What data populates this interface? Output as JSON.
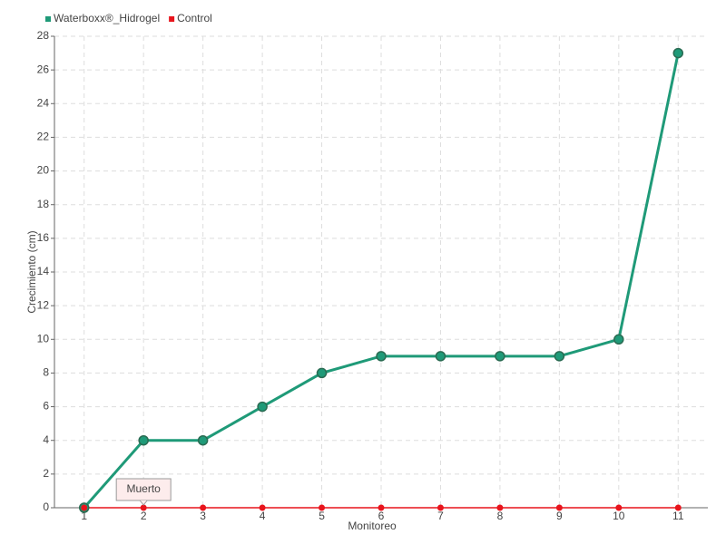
{
  "chart_data": {
    "type": "line",
    "x_label": "Monitoreo",
    "y_label": "Crecimiento (cm)",
    "categories": [
      "1",
      "2",
      "3",
      "4",
      "5",
      "6",
      "7",
      "8",
      "9",
      "10",
      "11"
    ],
    "series": [
      {
        "name": "Waterboxx®_Hidrogel",
        "color": "#1f9a78",
        "values": [
          0,
          4,
          4,
          6,
          8,
          9,
          9,
          9,
          9,
          10,
          27
        ]
      },
      {
        "name": "Control",
        "color": "#e8141c",
        "values": [
          0,
          0,
          0,
          0,
          0,
          0,
          0,
          0,
          0,
          0,
          0
        ]
      }
    ],
    "ylim": [
      0,
      28
    ],
    "yticks": [
      0,
      2,
      4,
      6,
      8,
      10,
      12,
      14,
      16,
      18,
      20,
      22,
      24,
      26,
      28
    ],
    "grid": true,
    "legend": "top-left",
    "annotations": [
      {
        "text": "Muerto",
        "x": "2",
        "y": 0
      }
    ]
  }
}
